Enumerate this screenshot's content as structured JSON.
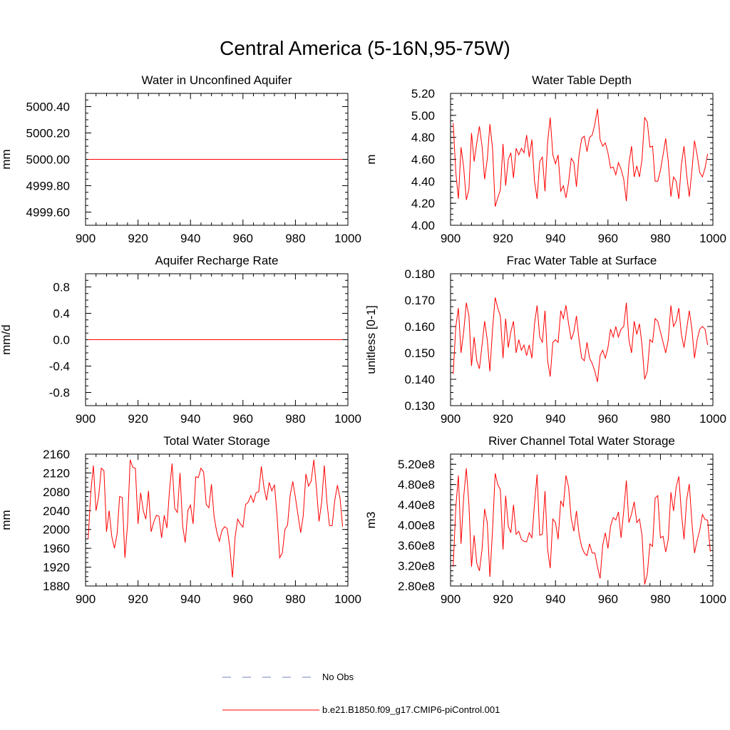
{
  "title": "Central America (5-16N,95-75W)",
  "colors": {
    "model": "#ff0000",
    "obs": "#7080c0",
    "axis": "#000000"
  },
  "legend": {
    "entries": [
      {
        "label": "No Obs",
        "style": "dashed",
        "color": "#7080c0"
      },
      {
        "label": "b.e21.B1850.f09_g17.CMIP6-piControl.001",
        "style": "solid",
        "color": "#ff0000"
      }
    ]
  },
  "chart_data": [
    {
      "type": "line",
      "title": "Water in Unconfined Aquifer",
      "ylabel": "mm",
      "xlim": [
        900,
        1000
      ],
      "ylim": [
        4999.5,
        5000.5
      ],
      "xticks": [
        900,
        920,
        940,
        960,
        980,
        1000
      ],
      "yticks": [
        4999.6,
        4999.8,
        5000.0,
        5000.2,
        5000.4
      ],
      "ytick_labels": [
        "4999.60",
        "4999.80",
        "5000.00",
        "5000.20",
        "5000.40"
      ],
      "series": [
        {
          "name": "b.e21.B1850.f09_g17.CMIP6-piControl.001",
          "x_start": 901,
          "constant": 5000.0,
          "count": 98
        }
      ]
    },
    {
      "type": "line",
      "title": "Water Table Depth",
      "ylabel": "m",
      "xlim": [
        900,
        1000
      ],
      "ylim": [
        4.0,
        5.2
      ],
      "xticks": [
        900,
        920,
        940,
        960,
        980,
        1000
      ],
      "yticks": [
        4.0,
        4.2,
        4.4,
        4.6,
        4.8,
        5.0,
        5.2
      ],
      "ytick_labels": [
        "4.00",
        "4.20",
        "4.40",
        "4.60",
        "4.80",
        "5.00",
        "5.20"
      ],
      "series": [
        {
          "name": "b.e21.B1850.f09_g17.CMIP6-piControl.001",
          "x_start": 901,
          "values": [
            4.93,
            4.48,
            4.24,
            4.71,
            4.53,
            4.23,
            4.33,
            4.84,
            4.58,
            4.75,
            4.9,
            4.72,
            4.42,
            4.6,
            4.92,
            4.7,
            4.17,
            4.25,
            4.32,
            4.74,
            4.36,
            4.6,
            4.66,
            4.43,
            4.7,
            4.64,
            4.7,
            4.66,
            4.82,
            4.62,
            4.78,
            4.4,
            4.24,
            4.58,
            4.62,
            4.31,
            4.76,
            4.98,
            4.64,
            4.56,
            4.64,
            4.31,
            4.36,
            4.25,
            4.39,
            4.61,
            4.57,
            4.35,
            4.64,
            4.79,
            4.81,
            4.67,
            4.8,
            4.82,
            4.92,
            5.06,
            4.78,
            4.72,
            4.75,
            4.66,
            4.52,
            4.53,
            4.46,
            4.57,
            4.51,
            4.42,
            4.22,
            4.56,
            4.72,
            4.44,
            4.54,
            4.44,
            4.6,
            4.98,
            4.94,
            4.71,
            4.72,
            4.4,
            4.4,
            4.5,
            4.64,
            4.79,
            4.58,
            4.26,
            4.44,
            4.4,
            4.24,
            4.55,
            4.72,
            4.46,
            4.26,
            4.5,
            4.77,
            4.64,
            4.48,
            4.44,
            4.52,
            4.65
          ]
        }
      ]
    },
    {
      "type": "line",
      "title": "Aquifer Recharge Rate",
      "ylabel": "mm/d",
      "xlim": [
        900,
        1000
      ],
      "ylim": [
        -1.0,
        1.0
      ],
      "xticks": [
        900,
        920,
        940,
        960,
        980,
        1000
      ],
      "yticks": [
        -0.8,
        -0.4,
        0.0,
        0.4,
        0.8
      ],
      "ytick_labels": [
        "-0.8",
        "-0.4",
        "0.0",
        "0.4",
        "0.8"
      ],
      "series": [
        {
          "name": "b.e21.B1850.f09_g17.CMIP6-piControl.001",
          "x_start": 901,
          "constant": 0.0,
          "count": 98
        }
      ]
    },
    {
      "type": "line",
      "title": "Frac Water Table at Surface",
      "ylabel": "unitless [0-1]",
      "xlim": [
        900,
        1000
      ],
      "ylim": [
        0.13,
        0.18
      ],
      "xticks": [
        900,
        920,
        940,
        960,
        980,
        1000
      ],
      "yticks": [
        0.13,
        0.14,
        0.15,
        0.16,
        0.17,
        0.18
      ],
      "ytick_labels": [
        "0.130",
        "0.140",
        "0.150",
        "0.160",
        "0.170",
        "0.180"
      ],
      "series": [
        {
          "name": "b.e21.B1850.f09_g17.CMIP6-piControl.001",
          "x_start": 901,
          "values": [
            0.142,
            0.16,
            0.167,
            0.15,
            0.158,
            0.169,
            0.164,
            0.145,
            0.156,
            0.147,
            0.144,
            0.153,
            0.162,
            0.155,
            0.143,
            0.159,
            0.171,
            0.167,
            0.164,
            0.148,
            0.163,
            0.152,
            0.158,
            0.162,
            0.15,
            0.155,
            0.151,
            0.153,
            0.149,
            0.153,
            0.148,
            0.161,
            0.168,
            0.156,
            0.154,
            0.166,
            0.147,
            0.141,
            0.154,
            0.155,
            0.154,
            0.166,
            0.163,
            0.168,
            0.161,
            0.155,
            0.158,
            0.164,
            0.155,
            0.148,
            0.147,
            0.154,
            0.148,
            0.146,
            0.143,
            0.139,
            0.149,
            0.151,
            0.148,
            0.152,
            0.159,
            0.156,
            0.16,
            0.156,
            0.159,
            0.16,
            0.169,
            0.155,
            0.15,
            0.162,
            0.157,
            0.161,
            0.153,
            0.14,
            0.143,
            0.155,
            0.154,
            0.163,
            0.162,
            0.158,
            0.154,
            0.15,
            0.155,
            0.168,
            0.16,
            0.162,
            0.167,
            0.157,
            0.152,
            0.159,
            0.166,
            0.159,
            0.148,
            0.155,
            0.159,
            0.16,
            0.159,
            0.153
          ]
        }
      ]
    },
    {
      "type": "line",
      "title": "Total Water Storage",
      "ylabel": "mm",
      "xlim": [
        900,
        1000
      ],
      "ylim": [
        1880,
        2160
      ],
      "xticks": [
        900,
        920,
        940,
        960,
        980,
        1000
      ],
      "yticks": [
        1880,
        1920,
        1960,
        2000,
        2040,
        2080,
        2120,
        2160
      ],
      "ytick_labels": [
        "1880",
        "1920",
        "1960",
        "2000",
        "2040",
        "2080",
        "2120",
        "2160"
      ],
      "series": [
        {
          "name": "b.e21.B1850.f09_g17.CMIP6-piControl.001",
          "x_start": 901,
          "values": [
            1980,
            2080,
            2136,
            2040,
            2070,
            2130,
            2125,
            1995,
            2040,
            1985,
            1960,
            1990,
            2070,
            2068,
            1940,
            2010,
            2148,
            2132,
            2130,
            2012,
            2078,
            2040,
            2022,
            2082,
            1995,
            2016,
            2030,
            2028,
            1982,
            2030,
            2003,
            2084,
            2140,
            2045,
            2036,
            2120,
            2008,
            1972,
            2040,
            2052,
            2012,
            2112,
            2110,
            2130,
            2122,
            2053,
            2046,
            2096,
            2028,
            1995,
            1975,
            1998,
            2006,
            2002,
            1962,
            1898,
            1984,
            2022,
            2012,
            2005,
            2053,
            2058,
            2072,
            2058,
            2078,
            2080,
            2134,
            2090,
            2062,
            2100,
            2082,
            2095,
            2030,
            1940,
            1950,
            2000,
            2010,
            2072,
            2102,
            2068,
            2030,
            1993,
            2030,
            2118,
            2092,
            2103,
            2148,
            2090,
            2017,
            2058,
            2136,
            2058,
            2008,
            2008,
            2062,
            2094,
            2066,
            2006
          ]
        }
      ]
    },
    {
      "type": "line",
      "title": "River Channel Total Water Storage",
      "ylabel": "m3",
      "xlim": [
        900,
        1000
      ],
      "ylim": [
        280000000,
        540000000
      ],
      "xticks": [
        900,
        920,
        940,
        960,
        980,
        1000
      ],
      "yticks": [
        280000000,
        320000000,
        360000000,
        400000000,
        440000000,
        480000000,
        520000000
      ],
      "ytick_labels": [
        "2.80e8",
        "3.20e8",
        "3.60e8",
        "4.00e8",
        "4.40e8",
        "4.80e8",
        "5.20e8"
      ],
      "series": [
        {
          "name": "b.e21.B1850.f09_g17.CMIP6-piControl.001",
          "x_start": 901,
          "values": [
            318000000,
            435000000,
            498000000,
            363000000,
            455000000,
            512000000,
            440000000,
            318000000,
            380000000,
            325000000,
            310000000,
            352000000,
            432000000,
            405000000,
            298000000,
            390000000,
            502000000,
            480000000,
            470000000,
            352000000,
            458000000,
            398000000,
            385000000,
            440000000,
            382000000,
            388000000,
            372000000,
            368000000,
            367000000,
            385000000,
            375000000,
            442000000,
            500000000,
            380000000,
            382000000,
            467000000,
            352000000,
            315000000,
            412000000,
            405000000,
            372000000,
            448000000,
            437000000,
            498000000,
            475000000,
            413000000,
            388000000,
            428000000,
            382000000,
            357000000,
            345000000,
            340000000,
            363000000,
            345000000,
            345000000,
            318000000,
            295000000,
            360000000,
            385000000,
            354000000,
            398000000,
            415000000,
            410000000,
            426000000,
            375000000,
            428000000,
            488000000,
            405000000,
            422000000,
            446000000,
            405000000,
            412000000,
            380000000,
            283000000,
            304000000,
            363000000,
            358000000,
            453000000,
            458000000,
            375000000,
            378000000,
            347000000,
            372000000,
            465000000,
            428000000,
            475000000,
            496000000,
            425000000,
            372000000,
            450000000,
            481000000,
            405000000,
            345000000,
            370000000,
            390000000,
            421000000,
            411000000,
            410000000,
            348000000
          ]
        }
      ]
    }
  ]
}
